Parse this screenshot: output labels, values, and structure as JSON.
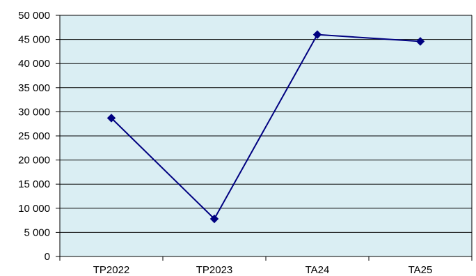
{
  "chart_data": {
    "type": "line",
    "title": "",
    "xlabel": "",
    "ylabel": "",
    "categories": [
      "TP2022",
      "TP2023",
      "TA24",
      "TA25"
    ],
    "series": [
      {
        "values": [
          28700,
          7800,
          46000,
          44600
        ]
      }
    ],
    "ylim": [
      0,
      50000
    ],
    "yticks": [
      0,
      5000,
      10000,
      15000,
      20000,
      25000,
      30000,
      35000,
      40000,
      45000,
      50000
    ],
    "ytick_labels": [
      "0",
      "5 000",
      "10 000",
      "15 000",
      "20 000",
      "25 000",
      "30 000",
      "35 000",
      "40 000",
      "45 000",
      "50 000"
    ],
    "grid": true,
    "legend": "none",
    "colors": {
      "plot_background": "#daeef3",
      "line": "#000080",
      "marker": "#000080",
      "gridline": "#000000",
      "axis": "#000000"
    },
    "marker": "diamond"
  }
}
